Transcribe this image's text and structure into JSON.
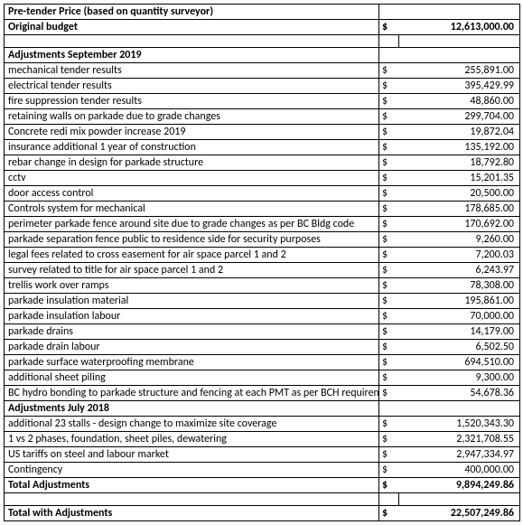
{
  "header": {
    "title": "Pre-tender Price (based on quantity surveyor)",
    "original_label": "Original budget",
    "original_currency": "$",
    "original_amount": "12,613,000.00"
  },
  "section_sep_2019": {
    "title": "Adjustments September 2019",
    "items": [
      {
        "label": "mechanical tender results",
        "cur": "$",
        "amount": "255,891.00"
      },
      {
        "label": "electrical tender results",
        "cur": "$",
        "amount": "395,429.99"
      },
      {
        "label": "fire suppression tender results",
        "cur": "$",
        "amount": "48,860.00"
      },
      {
        "label": "retaining walls on parkade due to grade changes",
        "cur": "$",
        "amount": "299,704.00"
      },
      {
        "label": "Concrete redi mix powder increase 2019",
        "cur": "$",
        "amount": "19,872.04"
      },
      {
        "label": "insurance additional 1 year of construction",
        "cur": "$",
        "amount": "135,192.00"
      },
      {
        "label": "rebar change in design for parkade structure",
        "cur": "$",
        "amount": "18,792.80"
      },
      {
        "label": "cctv",
        "cur": "$",
        "amount": "15,201.35"
      },
      {
        "label": "door access control",
        "cur": "$",
        "amount": "20,500.00"
      },
      {
        "label": "Controls system for mechanical",
        "cur": "$",
        "amount": "178,685.00"
      },
      {
        "label": "perimeter parkade fence around site due to grade changes as per BC Bldg code",
        "cur": "$",
        "amount": "170,692.00"
      },
      {
        "label": "parkade separation fence public to residence side for security purposes",
        "cur": "$",
        "amount": "9,260.00"
      },
      {
        "label": "legal fees  related to cross easement for air space parcel 1 and 2",
        "cur": "$",
        "amount": "7,200.03"
      },
      {
        "label": "survey related to title for air space parcel 1 and 2",
        "cur": "$",
        "amount": "6,243.97"
      },
      {
        "label": "trellis work over ramps",
        "cur": "$",
        "amount": "78,308.00"
      },
      {
        "label": "parkade insulation material",
        "cur": "$",
        "amount": "195,861.00"
      },
      {
        "label": "parkade insulation labour",
        "cur": "$",
        "amount": "70,000.00"
      },
      {
        "label": "parkade drains",
        "cur": "$",
        "amount": "14,179.00"
      },
      {
        "label": "parkade drain labour",
        "cur": "$",
        "amount": "6,502.50"
      },
      {
        "label": "parkade surface waterproofing membrane",
        "cur": "$",
        "amount": "694,510.00"
      },
      {
        "label": "additional sheet piling",
        "cur": "$",
        "amount": "9,300.00"
      },
      {
        "label": "BC hydro  bonding to parkade structure and  fencing at each PMT as per BCH requirements",
        "cur": "$",
        "amount": "54,678.36"
      }
    ]
  },
  "section_jul_2018": {
    "title": "Adjustments July 2018",
    "items": [
      {
        "label": "additional 23 stalls - design change to maximize site coverage",
        "cur": "$",
        "amount": "1,520,343.30"
      },
      {
        "label": "1 vs 2 phases, foundation, sheet piles, dewatering",
        "cur": "$",
        "amount": "2,321,708.55"
      },
      {
        "label": "US tariffs on steel and labour market",
        "cur": "$",
        "amount": "2,947,334.97"
      },
      {
        "label": "Contingency",
        "cur": "$",
        "amount": "400,000.00"
      }
    ]
  },
  "total_adjustments": {
    "label": "Total Adjustments",
    "cur": "$",
    "amount": "9,894,249.86"
  },
  "grand_total": {
    "label": "Total with Adjustments",
    "cur": "$",
    "amount": "22,507,249.86"
  }
}
